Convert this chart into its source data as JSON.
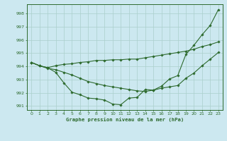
{
  "title": "Graphe pression niveau de la mer (hPa)",
  "background_color": "#cce8f0",
  "grid_color": "#aacfcc",
  "line_color": "#2d6a2d",
  "xlim": [
    -0.5,
    23.5
  ],
  "ylim": [
    990.7,
    998.7
  ],
  "yticks": [
    991,
    992,
    993,
    994,
    995,
    996,
    997,
    998
  ],
  "xticks": [
    0,
    1,
    2,
    3,
    4,
    5,
    6,
    7,
    8,
    9,
    10,
    11,
    12,
    13,
    14,
    15,
    16,
    17,
    18,
    19,
    20,
    21,
    22,
    23
  ],
  "series": [
    [
      994.3,
      994.05,
      993.9,
      993.55,
      992.75,
      992.05,
      991.85,
      991.6,
      991.55,
      991.45,
      991.15,
      991.1,
      991.6,
      991.65,
      992.25,
      992.2,
      992.5,
      993.05,
      993.3,
      994.9,
      995.6,
      996.4,
      997.1,
      998.3
    ],
    [
      994.3,
      994.05,
      993.9,
      994.05,
      994.15,
      994.2,
      994.3,
      994.35,
      994.45,
      994.45,
      994.5,
      994.5,
      994.55,
      994.55,
      994.65,
      994.75,
      994.85,
      994.95,
      995.05,
      995.15,
      995.3,
      995.5,
      995.65,
      995.85
    ],
    [
      994.3,
      994.05,
      993.85,
      993.75,
      993.55,
      993.35,
      993.1,
      992.85,
      992.7,
      992.55,
      992.45,
      992.35,
      992.25,
      992.15,
      992.1,
      992.2,
      992.35,
      992.45,
      992.55,
      993.1,
      993.5,
      994.05,
      994.55,
      995.05
    ]
  ]
}
